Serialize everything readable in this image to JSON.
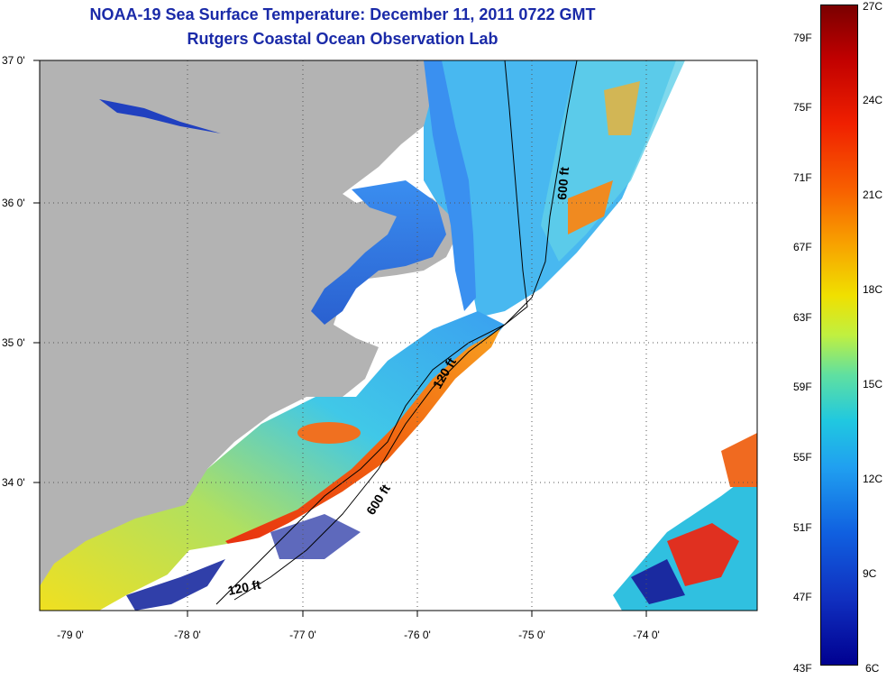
{
  "title": "NOAA-19 Sea Surface Temperature:  December 11, 2011 0722 GMT",
  "subtitle": "Rutgers Coastal Ocean Observation Lab",
  "lon_labels": [
    "-79 0'",
    "-78 0'",
    "-77 0'",
    "-76 0'",
    "-75 0'",
    "-74 0'"
  ],
  "lat_labels": [
    "37 0'",
    "36 0'",
    "35 0'",
    "34 0'"
  ],
  "contours": {
    "label_600_north": "600 ft",
    "label_120_mid": "120 ft",
    "label_600_south": "600 ft",
    "label_120_south": "120 ft"
  },
  "colorbar": {
    "fahrenheit": [
      "79F",
      "75F",
      "71F",
      "67F",
      "63F",
      "59F",
      "55F",
      "51F",
      "47F",
      "43F"
    ],
    "celsius": [
      "27C",
      "24C",
      "21C",
      "18C",
      "15C",
      "12C",
      "9C",
      "6C"
    ]
  },
  "colors": {
    "land": "#b3b3b3",
    "title": "#1a2aa8"
  }
}
